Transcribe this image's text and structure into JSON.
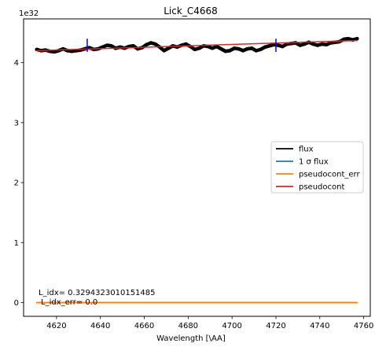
{
  "chart_data": {
    "type": "line",
    "title": "Lick_C4668",
    "xlabel": "Wavelength [\\AA]",
    "ylabel": "",
    "y_offset_label": "1e32",
    "xlim": [
      4605,
      4763
    ],
    "ylim": [
      -0.23,
      4.73
    ],
    "x_ticks": [
      4620,
      4640,
      4660,
      4680,
      4700,
      4720,
      4740,
      4760
    ],
    "y_ticks": [
      0,
      1,
      2,
      3,
      4
    ],
    "grid": false,
    "legend_position": "center-right",
    "legend": [
      {
        "label": "flux",
        "color": "#000000"
      },
      {
        "label": "1 σ flux",
        "color": "#1f77b4"
      },
      {
        "label": "pseudocont_err",
        "color": "#ff7f0e"
      },
      {
        "label": "pseudocont",
        "color": "#d62728"
      }
    ],
    "series": [
      {
        "name": "flux",
        "color": "#000000",
        "x": [
          4611,
          4613,
          4615,
          4617,
          4619,
          4621,
          4623,
          4625,
          4627,
          4629,
          4631,
          4633,
          4635,
          4637,
          4639,
          4641,
          4643,
          4645,
          4647,
          4649,
          4651,
          4653,
          4655,
          4657,
          4659,
          4661,
          4663,
          4665,
          4667,
          4669,
          4671,
          4673,
          4675,
          4677,
          4679,
          4681,
          4683,
          4685,
          4687,
          4689,
          4691,
          4693,
          4695,
          4697,
          4699,
          4701,
          4703,
          4705,
          4707,
          4709,
          4711,
          4713,
          4715,
          4717,
          4719,
          4721,
          4723,
          4725,
          4727,
          4729,
          4731,
          4733,
          4735,
          4737,
          4739,
          4741,
          4743,
          4745,
          4747,
          4749,
          4751,
          4753,
          4755,
          4757
        ],
        "y": [
          4.22,
          4.2,
          4.21,
          4.19,
          4.18,
          4.2,
          4.23,
          4.2,
          4.19,
          4.2,
          4.21,
          4.23,
          4.25,
          4.22,
          4.23,
          4.26,
          4.29,
          4.28,
          4.24,
          4.26,
          4.24,
          4.27,
          4.28,
          4.23,
          4.25,
          4.3,
          4.33,
          4.31,
          4.26,
          4.2,
          4.24,
          4.28,
          4.26,
          4.29,
          4.31,
          4.27,
          4.22,
          4.24,
          4.28,
          4.27,
          4.24,
          4.27,
          4.23,
          4.19,
          4.2,
          4.24,
          4.23,
          4.2,
          4.23,
          4.24,
          4.2,
          4.22,
          4.26,
          4.28,
          4.3,
          4.29,
          4.27,
          4.31,
          4.32,
          4.33,
          4.29,
          4.31,
          4.34,
          4.31,
          4.29,
          4.31,
          4.3,
          4.33,
          4.34,
          4.35,
          4.39,
          4.4,
          4.38,
          4.4
        ]
      },
      {
        "name": "1 σ flux",
        "color": "#1f77b4",
        "x": [
          4611,
          4757
        ],
        "y": [
          0,
          0
        ]
      },
      {
        "name": "pseudocont_err",
        "color": "#ff7f0e",
        "x": [
          4611,
          4757
        ],
        "y": [
          0,
          0
        ]
      },
      {
        "name": "pseudocont",
        "color": "#d62728",
        "x": [
          4611,
          4757
        ],
        "y": [
          4.2,
          4.37
        ]
      }
    ],
    "markers": [
      {
        "x": 4634,
        "y_low": 4.18,
        "y_high": 4.4,
        "color": "#0000ff"
      },
      {
        "x": 4720,
        "y_low": 4.18,
        "y_high": 4.4,
        "color": "#0000ff"
      }
    ],
    "annotations": [
      "L_idx= 0.3294323010151485",
      "L_idx_err= 0.0"
    ]
  }
}
